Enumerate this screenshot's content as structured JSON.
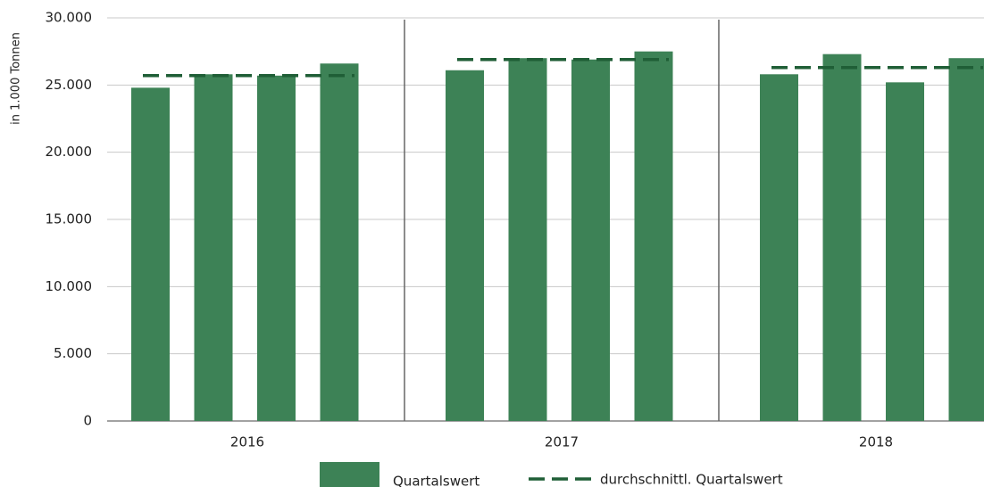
{
  "chart_data": {
    "type": "grouped-bar-average",
    "y_label": "in 1.000 Tonnen",
    "categories": [
      "2016",
      "2017",
      "2018"
    ],
    "series": [
      {
        "name": "Quartalswert",
        "color": "#3d8256",
        "values": [
          [
            24800,
            25800,
            25700,
            26600
          ],
          [
            26100,
            27000,
            26900,
            27500
          ],
          [
            25800,
            27300,
            25200,
            27000
          ]
        ]
      },
      {
        "name": "durchschnittl. Quartalswert",
        "color": "#1f5e36",
        "line_style": "dashed",
        "values": [
          25700,
          26900,
          26300
        ]
      }
    ],
    "ylim": [
      0,
      30000
    ],
    "yticks": [
      0,
      {
        "value": 5000,
        "label": "5.000"
      },
      {
        "value": 10000,
        "label": "10.000"
      },
      {
        "value": 15000,
        "label": "15.000"
      },
      {
        "value": 20000,
        "label": "20.000"
      },
      {
        "value": 25000,
        "label": "25.000"
      },
      {
        "value": 30000,
        "label": "30.000"
      }
    ],
    "grid": true
  }
}
